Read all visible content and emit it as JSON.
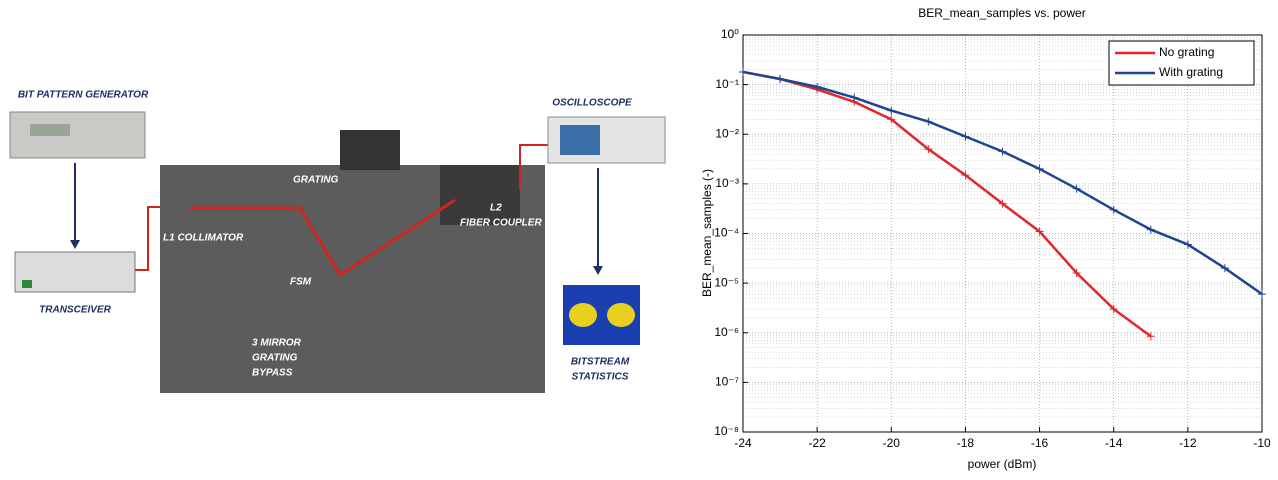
{
  "diagram": {
    "labels": [
      "BIT PATTERN GENERATOR",
      "TRANSCEIVER",
      "GRATING",
      "L1 COLLIMATOR",
      "L2",
      "FIBER COUPLER",
      "FSM",
      "3 MIRROR",
      "GRATING",
      "BYPASS",
      "OSCILLOSCOPE",
      "BITSTREAM",
      "STATISTICS"
    ]
  },
  "chart_data": {
    "type": "line",
    "title": "BER_mean_samples vs. power",
    "x_label": "power (dBm)",
    "y_label": "BER_mean_samples (-)",
    "x": [
      -24,
      -23,
      -22,
      -21,
      -20,
      -19,
      -18,
      -17,
      -16,
      -15,
      -14,
      -13,
      -12,
      -11,
      -10
    ],
    "series": [
      {
        "name": "No grating",
        "color": "#e3262b",
        "values": [
          0.18,
          0.13,
          0.08,
          0.045,
          0.02,
          0.005,
          0.0015,
          0.0004,
          0.00011,
          1.6e-05,
          3e-06,
          8.5e-07,
          null,
          null,
          null
        ]
      },
      {
        "name": "With grating",
        "color": "#1f4591",
        "values": [
          0.18,
          0.13,
          0.09,
          0.055,
          0.03,
          0.018,
          0.009,
          0.0045,
          0.002,
          0.0008,
          0.0003,
          0.00012,
          6e-05,
          2e-05,
          6e-06
        ]
      }
    ],
    "xlim": [
      -24,
      -10
    ],
    "xticks": [
      -24,
      -22,
      -20,
      -18,
      -16,
      -14,
      -12,
      -10
    ],
    "ylim": [
      1e-08,
      1
    ],
    "yticks": [
      {
        "value": 1e-08,
        "label": "10⁻⁸"
      },
      {
        "value": 1e-07,
        "label": "10⁻⁷"
      },
      {
        "value": 1e-06,
        "label": "10⁻⁶"
      },
      {
        "value": 1e-05,
        "label": "10⁻⁵"
      },
      {
        "value": 0.0001,
        "label": "10⁻⁴"
      },
      {
        "value": 0.001,
        "label": "10⁻³"
      },
      {
        "value": 0.01,
        "label": "10⁻²"
      },
      {
        "value": 0.1,
        "label": "10⁻¹"
      },
      {
        "value": 1,
        "label": "10⁰"
      }
    ],
    "log_y": true,
    "grid": true,
    "legend": "upper right"
  }
}
